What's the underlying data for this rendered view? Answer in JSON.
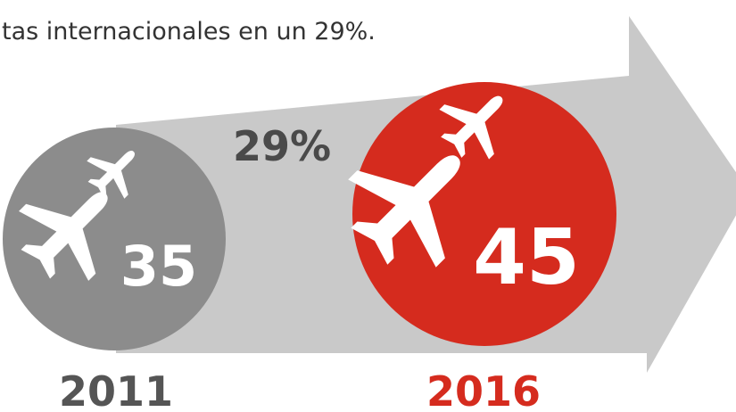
{
  "caption": "tas internacionales en un 29%.",
  "growth": "29%",
  "before": {
    "year": "2011",
    "value": "35"
  },
  "after": {
    "year": "2016",
    "value": "45"
  }
}
